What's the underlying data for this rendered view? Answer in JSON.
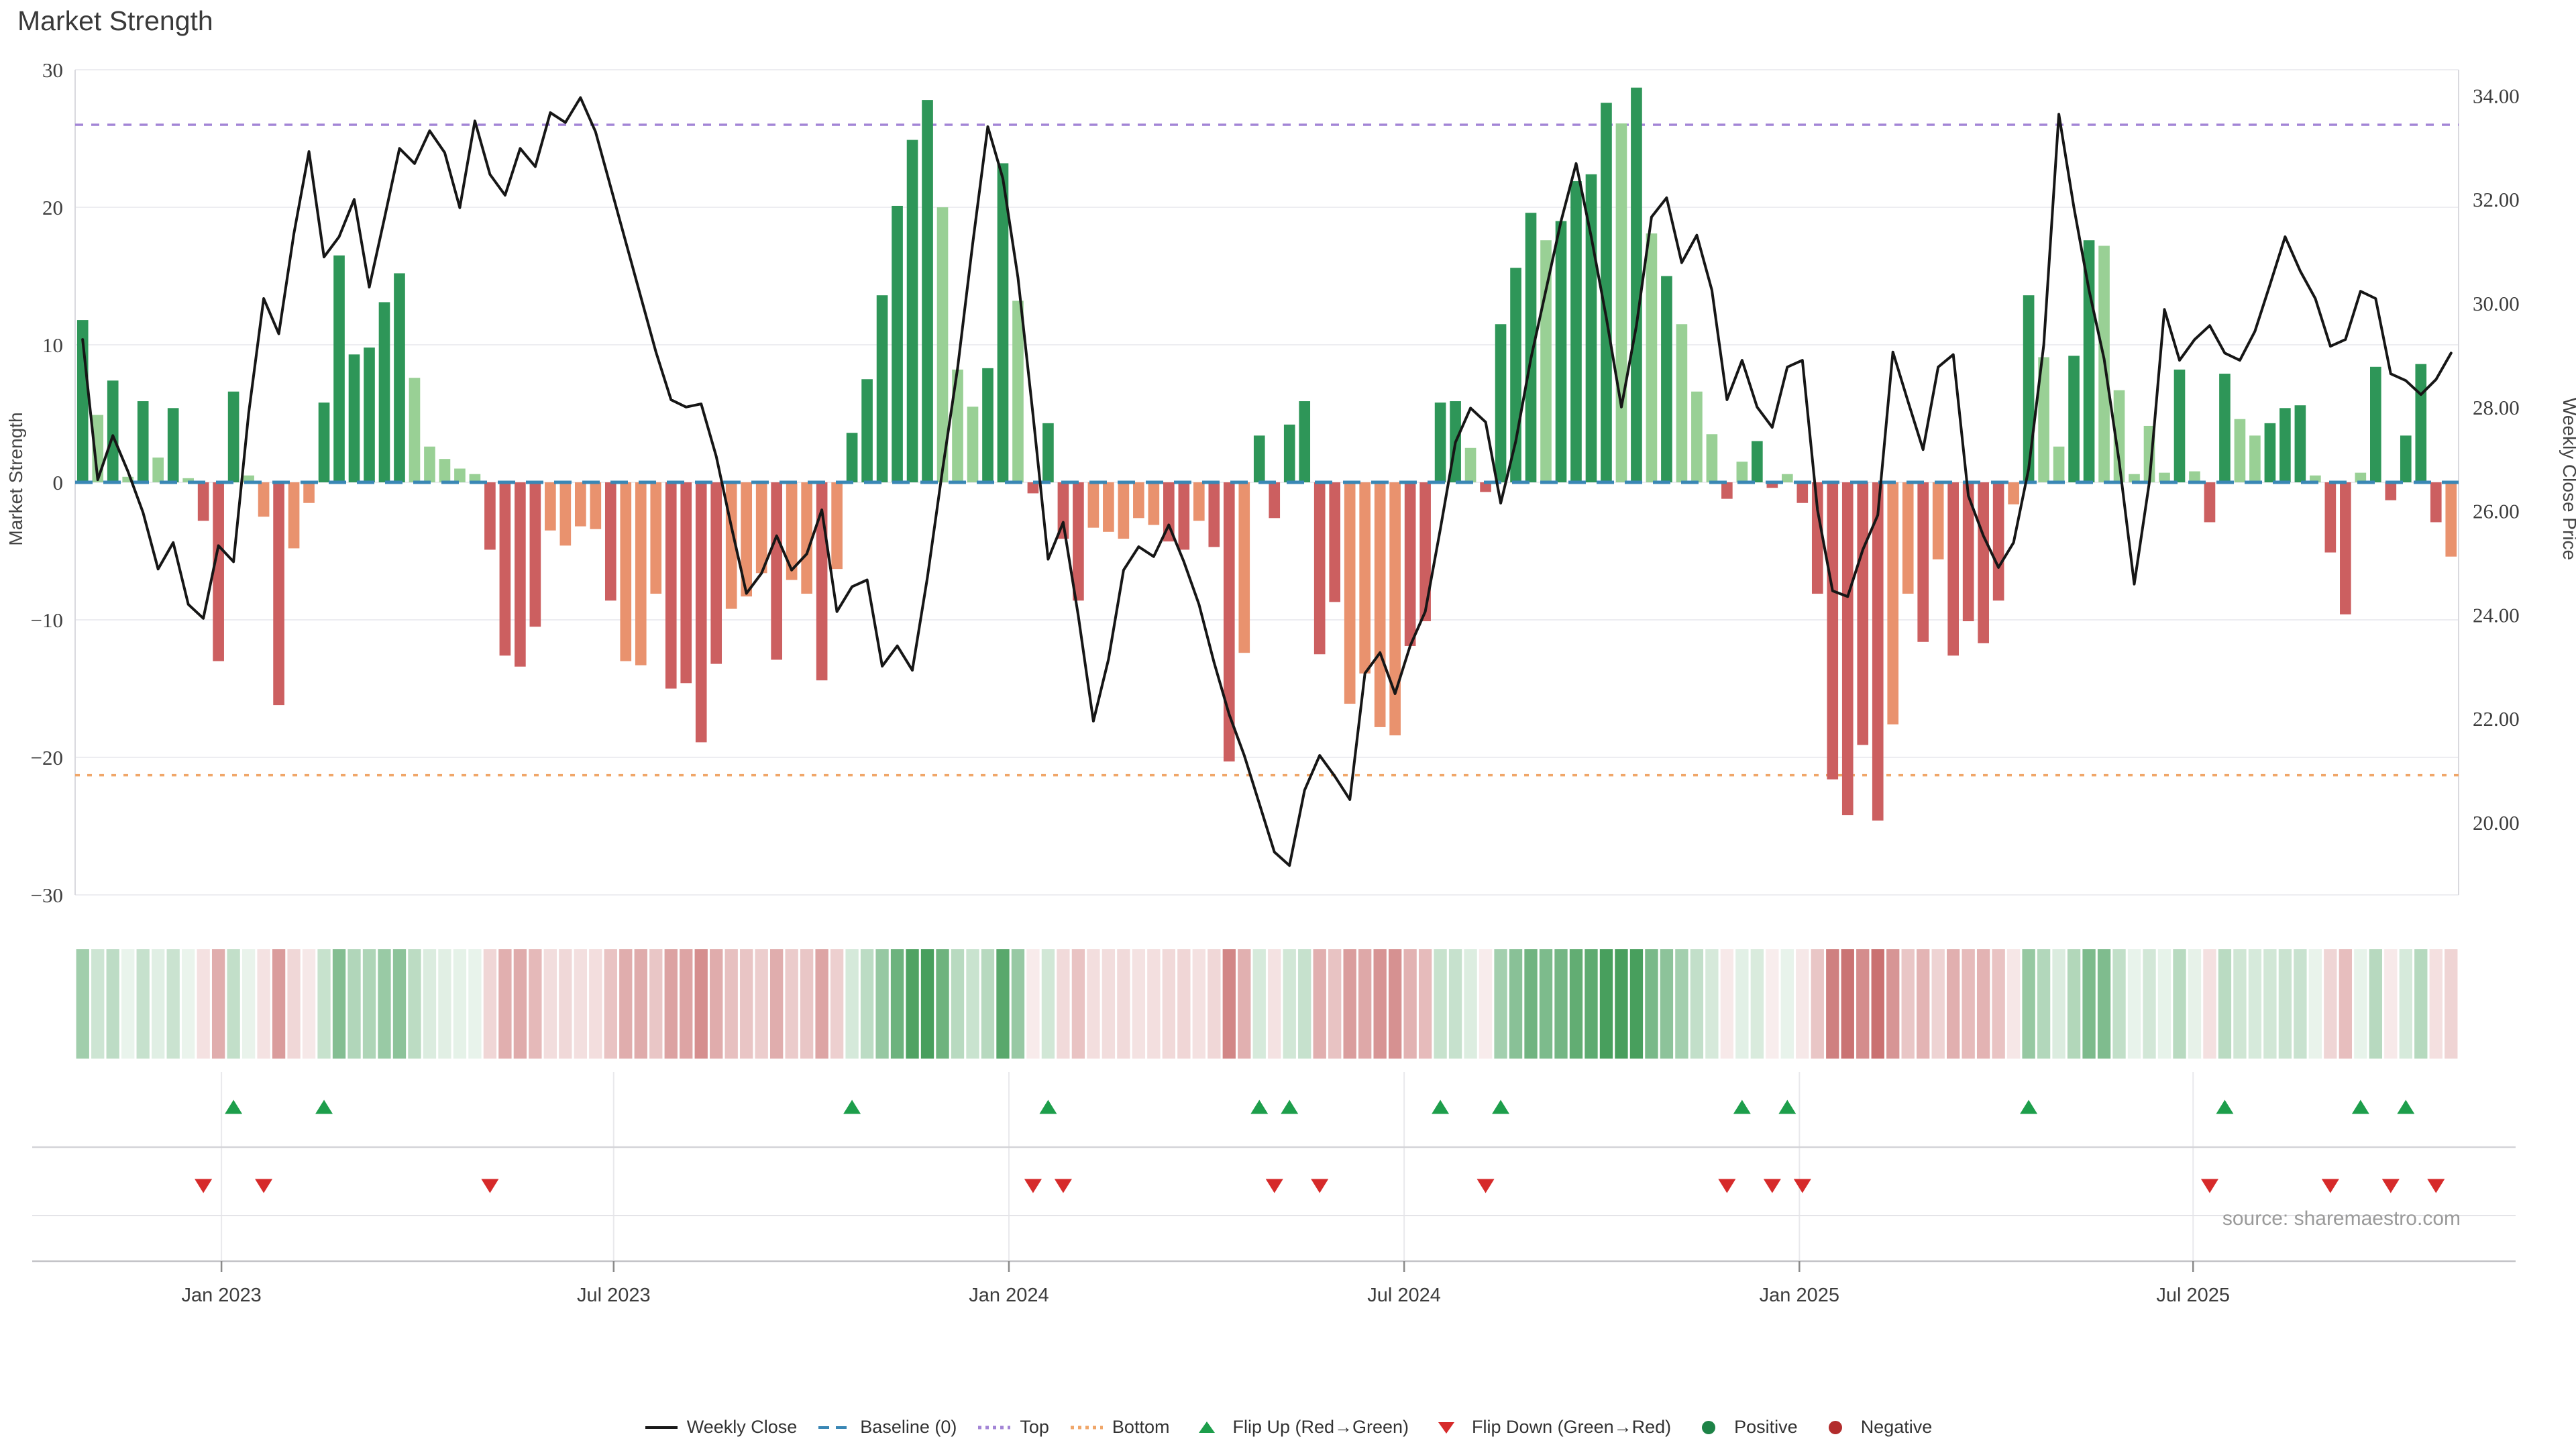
{
  "title": "Market Strength",
  "source_text": "source: sharemaestro.com",
  "chart_data": {
    "type": "combo-bar-line-heatmap",
    "title": "Market Strength",
    "left_axis": {
      "label": "Market Strength",
      "ticks": [
        30,
        20,
        10,
        0,
        -10,
        -20,
        -30
      ],
      "ylim": [
        -30,
        30
      ]
    },
    "right_axis": {
      "label": "Weekly Close Price",
      "ticks": [
        "34.00",
        "32.00",
        "30.00",
        "28.00",
        "26.00",
        "24.00",
        "22.00",
        "20.00"
      ],
      "tick_values": [
        34,
        32,
        30,
        28,
        26,
        24,
        22,
        20
      ]
    },
    "x_ticks": [
      {
        "label": "Jan 2023",
        "week": 9.2
      },
      {
        "label": "Jul 2023",
        "week": 35.2
      },
      {
        "label": "Jan 2024",
        "week": 61.4
      },
      {
        "label": "Jul 2024",
        "week": 87.6
      },
      {
        "label": "Jan 2025",
        "week": 113.8
      },
      {
        "label": "Jul 2025",
        "week": 139.9
      }
    ],
    "baseline": 0,
    "top_line": 26.0,
    "bottom_line": -21.3,
    "grid": true,
    "legend_position": "bottom-center",
    "series": [
      {
        "name": "Market Strength (weekly bars)",
        "axis": "left",
        "values": [
          11.8,
          4.9,
          7.4,
          0.4,
          5.9,
          1.8,
          5.4,
          0.3,
          -2.8,
          -13,
          6.6,
          0.5,
          -2.5,
          -16.2,
          -4.8,
          -1.5,
          5.8,
          16.5,
          9.3,
          9.8,
          13.1,
          15.2,
          7.6,
          2.6,
          1.7,
          1,
          0.6,
          -4.9,
          -12.6,
          -13.4,
          -10.5,
          -3.5,
          -4.6,
          -3.2,
          -3.4,
          -8.6,
          -13,
          -13.3,
          -8.1,
          -15,
          -14.6,
          -18.9,
          -13.2,
          -9.2,
          -8.3,
          -6.6,
          -12.9,
          -7.1,
          -8.1,
          -14.4,
          -6.3,
          3.6,
          7.5,
          13.6,
          20.1,
          24.9,
          27.8,
          20,
          8.2,
          5.5,
          8.3,
          23.2,
          13.2,
          -0.8,
          4.3,
          -4.1,
          -8.6,
          -3.3,
          -3.6,
          -4.1,
          -2.6,
          -3.1,
          -4.3,
          -4.9,
          -2.8,
          -4.7,
          -20.3,
          -12.4,
          3.4,
          -2.6,
          4.2,
          5.9,
          -12.5,
          -8.7,
          -16.1,
          -13.9,
          -17.8,
          -18.4,
          -11.9,
          -10.1,
          5.8,
          5.9,
          2.5,
          -0.7,
          11.5,
          15.6,
          19.6,
          17.6,
          19,
          21.9,
          22.4,
          27.6,
          26.1,
          28.7,
          18.1,
          15,
          11.5,
          6.6,
          3.5,
          -1.2,
          1.5,
          3,
          -0.4,
          0.6,
          -1.5,
          -8.1,
          -21.6,
          -24.2,
          -19.1,
          -24.6,
          -17.6,
          -8.1,
          -11.6,
          -5.6,
          -12.6,
          -10.1,
          -11.7,
          -8.6,
          -1.6,
          13.6,
          9.1,
          2.6,
          9.2,
          17.6,
          17.2,
          6.7,
          0.6,
          4.1,
          0.7,
          8.2,
          0.8,
          -2.9,
          7.9,
          4.6,
          3.4,
          4.3,
          5.4,
          5.6,
          0.5,
          -5.1,
          -9.6,
          0.7,
          8.4,
          -1.3,
          3.4,
          8.6,
          -2.9,
          -5.4
        ]
      },
      {
        "name": "Weekly Close",
        "axis": "right",
        "values": [
          29.3,
          26.6,
          27.45,
          26.76,
          25.97,
          24.88,
          25.39,
          24.2,
          23.93,
          25.33,
          25.02,
          27.87,
          30.09,
          29.41,
          31.34,
          32.92,
          30.89,
          31.28,
          32.0,
          30.31,
          31.63,
          32.98,
          32.69,
          33.32,
          32.9,
          31.84,
          33.51,
          32.48,
          32.08,
          32.98,
          32.63,
          33.67,
          33.48,
          33.96,
          33.3,
          32.24,
          31.18,
          30.12,
          29.06,
          28.14,
          28.0,
          28.06,
          27.05,
          25.7,
          24.41,
          24.8,
          25.52,
          24.86,
          25.17,
          26.02,
          24.06,
          24.54,
          24.67,
          23.01,
          23.4,
          22.93,
          24.72,
          26.79,
          28.75,
          31.15,
          33.4,
          32.4,
          30.49,
          27.85,
          25.07,
          25.78,
          23.98,
          21.95,
          23.14,
          24.86,
          25.31,
          25.12,
          25.73,
          25.02,
          24.2,
          23.08,
          22.08,
          21.29,
          20.36,
          19.43,
          19.17,
          20.62,
          21.29,
          20.89,
          20.44,
          22.87,
          23.27,
          22.48,
          23.4,
          24.06,
          25.65,
          27.32,
          27.98,
          27.71,
          26.15,
          27.34,
          28.93,
          30.25,
          31.58,
          32.69,
          31.28,
          29.72,
          28.0,
          29.57,
          31.66,
          32.03,
          30.78,
          31.31,
          30.25,
          28.14,
          28.9,
          28.0,
          27.61,
          28.77,
          28.9,
          26.02,
          24.46,
          24.35,
          25.25,
          25.92,
          29.06,
          28.11,
          27.18,
          28.77,
          29.01,
          26.29,
          25.52,
          24.91,
          25.39,
          26.81,
          29.2,
          33.64,
          31.84,
          30.25,
          28.93,
          26.95,
          24.59,
          26.55,
          29.88,
          28.9,
          29.3,
          29.57,
          29.04,
          28.9,
          29.46,
          30.36,
          31.28,
          30.62,
          30.09,
          29.17,
          29.3,
          30.23,
          30.09,
          28.64,
          28.51,
          28.24,
          28.53,
          29.04
        ]
      }
    ],
    "bar_tone_parts": [
      "dldldldld",
      "ddlldll",
      "ddddddlllll",
      "ddddlllldlllddddllldlldl",
      "ddddddlllddl",
      "ddd",
      "dlllllddlddl",
      "dddd",
      "ddlllldd",
      "ddld",
      "dddlddddldldlll",
      "dlddld",
      "dddddlldlddddl",
      "dllddllllldl",
      "d",
      "dlldddl",
      "dd",
      "ld",
      "d",
      "dd",
      "dl"
    ],
    "heatmap": "same weekly values as strength bars, rendered as green/red intensity cells",
    "flip_rule": {
      "up": "bar sign flips negative to positive",
      "down": "bar sign flips positive to negative"
    }
  },
  "legend": {
    "items": [
      {
        "label": "Weekly Close",
        "type": "line",
        "color": "#1a1a1a"
      },
      {
        "label": "Baseline (0)",
        "type": "dashed",
        "color": "#3a87b5"
      },
      {
        "label": "Top",
        "type": "dotted",
        "color": "#a385d6"
      },
      {
        "label": "Bottom",
        "type": "dotted",
        "color": "#f0a669"
      },
      {
        "label": "Flip Up (Red→Green)",
        "type": "tri-up",
        "color": "#1d9e4b"
      },
      {
        "label": "Flip Down (Green→Red)",
        "type": "tri-down",
        "color": "#d62a2a"
      },
      {
        "label": "Positive",
        "type": "dot",
        "color": "#1d8347"
      },
      {
        "label": "Negative",
        "type": "dot",
        "color": "#b22c2c"
      }
    ]
  },
  "colors": {
    "bar_dark_green": "#2e9658",
    "bar_light_green": "#99d095",
    "bar_dark_red": "#cc5f60",
    "bar_light_red": "#e9926e",
    "heat_green_base": [
      62,
      154,
      84
    ],
    "heat_red_base": [
      196,
      98,
      98
    ],
    "line": "#161616",
    "baseline": "#3a87b5",
    "top_line": "#a385d6",
    "bottom_line": "#f0a669",
    "grid": "#ededf1",
    "spine": "#d9d9de",
    "divider": "#d4d4d8",
    "axis_line": "#c4c4c8",
    "tick_text": "#3d3d3d",
    "marker_up": "#1d9e4b",
    "marker_down": "#d62a2a"
  }
}
